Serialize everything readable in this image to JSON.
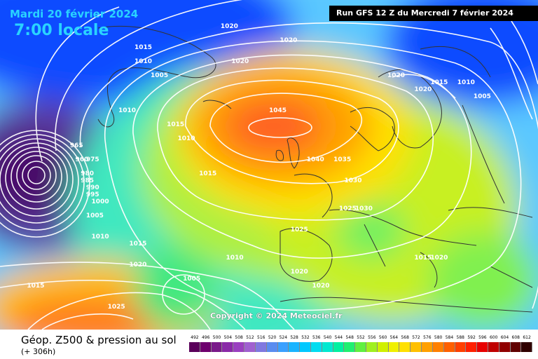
{
  "header": {
    "date": "Mardi 20 février 2024",
    "local_time": "7:00 locale",
    "run_info": "Run GFS 12 Z du Mercredi 7 février 2024"
  },
  "map": {
    "copyright": "Copyright © 2024 Meteociel.fr",
    "isobar_labels": [
      {
        "value": "1015",
        "lon": -30,
        "lat": 65
      },
      {
        "value": "1010",
        "lon": -30,
        "lat": 63
      },
      {
        "value": "1005",
        "lon": -27,
        "lat": 61
      },
      {
        "value": "1020",
        "lon": -14,
        "lat": 68
      },
      {
        "value": "1020",
        "lon": -12,
        "lat": 63
      },
      {
        "value": "1020",
        "lon": -3,
        "lat": 66
      },
      {
        "value": "1010",
        "lon": -33,
        "lat": 56
      },
      {
        "value": "1015",
        "lon": -24,
        "lat": 54
      },
      {
        "value": "1010",
        "lon": -22,
        "lat": 52
      },
      {
        "value": "1015",
        "lon": -18,
        "lat": 47
      },
      {
        "value": "1045",
        "lon": -5,
        "lat": 56
      },
      {
        "value": "1040",
        "lon": 2,
        "lat": 49
      },
      {
        "value": "1035",
        "lon": 7,
        "lat": 49
      },
      {
        "value": "1030",
        "lon": 9,
        "lat": 46
      },
      {
        "value": "1025",
        "lon": 8,
        "lat": 42
      },
      {
        "value": "1030",
        "lon": 11,
        "lat": 42
      },
      {
        "value": "1025",
        "lon": -1,
        "lat": 39
      },
      {
        "value": "1020",
        "lon": -1,
        "lat": 33
      },
      {
        "value": "1020",
        "lon": 3,
        "lat": 31
      },
      {
        "value": "1010",
        "lon": -13,
        "lat": 35
      },
      {
        "value": "1005",
        "lon": -21,
        "lat": 32
      },
      {
        "value": "1015",
        "lon": -31,
        "lat": 37
      },
      {
        "value": "1020",
        "lon": -31,
        "lat": 34
      },
      {
        "value": "1010",
        "lon": -38,
        "lat": 38
      },
      {
        "value": "1025",
        "lon": -35,
        "lat": 28
      },
      {
        "value": "1015",
        "lon": -50,
        "lat": 31
      },
      {
        "value": "1000",
        "lon": -38,
        "lat": 43
      },
      {
        "value": "995",
        "lon": -39,
        "lat": 44
      },
      {
        "value": "990",
        "lon": -39,
        "lat": 45
      },
      {
        "value": "985",
        "lon": -40,
        "lat": 46
      },
      {
        "value": "980",
        "lon": -40,
        "lat": 47
      },
      {
        "value": "975",
        "lon": -39,
        "lat": 49
      },
      {
        "value": "965",
        "lon": -42,
        "lat": 51
      },
      {
        "value": "960",
        "lon": -41,
        "lat": 49
      },
      {
        "value": "1005",
        "lon": -39,
        "lat": 41
      },
      {
        "value": "1020",
        "lon": 17,
        "lat": 61
      },
      {
        "value": "1020",
        "lon": 22,
        "lat": 59
      },
      {
        "value": "1015",
        "lon": 25,
        "lat": 60
      },
      {
        "value": "1010",
        "lon": 30,
        "lat": 60
      },
      {
        "value": "1005",
        "lon": 33,
        "lat": 58
      },
      {
        "value": "1015",
        "lon": 22,
        "lat": 35
      },
      {
        "value": "1020",
        "lon": 25,
        "lat": 35
      }
    ]
  },
  "footer": {
    "title": "Géop. Z500 & pression au sol",
    "subtitle": "(+ 306h)",
    "scale": {
      "labels": [
        "492",
        "496",
        "500",
        "504",
        "508",
        "512",
        "516",
        "520",
        "524",
        "528",
        "532",
        "536",
        "540",
        "544",
        "548",
        "552",
        "556",
        "560",
        "564",
        "568",
        "572",
        "576",
        "580",
        "584",
        "588",
        "592",
        "596",
        "600",
        "604",
        "608",
        "612"
      ],
      "colors": [
        "#5a005a",
        "#6e006e",
        "#7a1a8a",
        "#8a2aa8",
        "#9a40c0",
        "#a060d0",
        "#8078e0",
        "#5a8cf0",
        "#3aa0ff",
        "#1ab4ff",
        "#00c8ff",
        "#00dcf0",
        "#00e8d0",
        "#00f0a0",
        "#20f070",
        "#60f040",
        "#a0f020",
        "#d0f000",
        "#f0f000",
        "#ffe000",
        "#ffc000",
        "#ffa000",
        "#ff8000",
        "#ff6000",
        "#ff4000",
        "#ff2000",
        "#e80000",
        "#c00000",
        "#900000",
        "#600000",
        "#300000"
      ]
    }
  }
}
